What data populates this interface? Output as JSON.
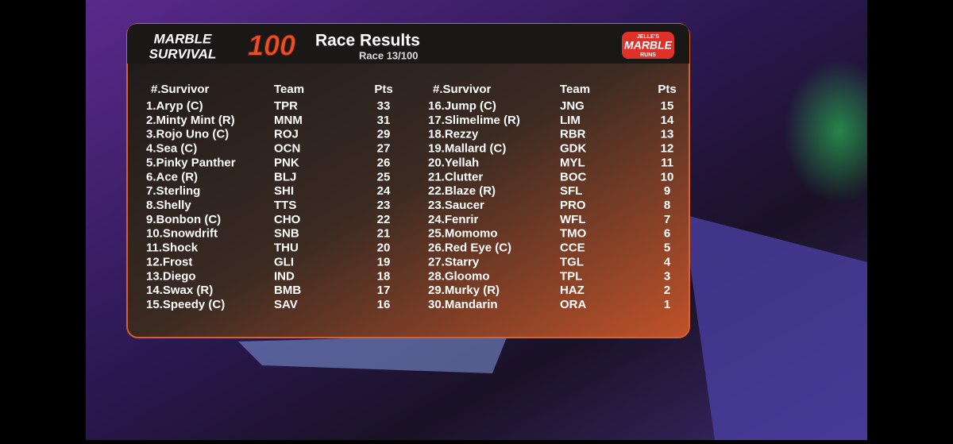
{
  "header": {
    "logo_top": "MARBLE",
    "logo_bottom": "SURVIVAL",
    "logo_number": "100",
    "title": "Race Results",
    "subtitle": "Race 13/100",
    "brand_top": "JELLE'S",
    "brand_main": "MARBLE",
    "brand_bottom": "RUNS"
  },
  "tables": [
    {
      "columns": [
        "#.Survivor",
        "Team",
        "Pts"
      ],
      "rows": [
        [
          "1.Aryp (C)",
          "TPR",
          33
        ],
        [
          "2.Minty Mint (R)",
          "MNM",
          31
        ],
        [
          "3.Rojo Uno (C)",
          "ROJ",
          29
        ],
        [
          "4.Sea (C)",
          "OCN",
          27
        ],
        [
          "5.Pinky Panther",
          "PNK",
          26
        ],
        [
          "6.Ace (R)",
          "BLJ",
          25
        ],
        [
          "7.Sterling",
          "SHI",
          24
        ],
        [
          "8.Shelly",
          "TTS",
          23
        ],
        [
          "9.Bonbon (C)",
          "CHO",
          22
        ],
        [
          "10.Snowdrift",
          "SNB",
          21
        ],
        [
          "11.Shock",
          "THU",
          20
        ],
        [
          "12.Frost",
          "GLI",
          19
        ],
        [
          "13.Diego",
          "IND",
          18
        ],
        [
          "14.Swax (R)",
          "BMB",
          17
        ],
        [
          "15.Speedy (C)",
          "SAV",
          16
        ]
      ]
    },
    {
      "columns": [
        "#.Survivor",
        "Team",
        "Pts"
      ],
      "rows": [
        [
          "16.Jump (C)",
          "JNG",
          15
        ],
        [
          "17.Slimelime (R)",
          "LIM",
          14
        ],
        [
          "18.Rezzy",
          "RBR",
          13
        ],
        [
          "19.Mallard (C)",
          "GDK",
          12
        ],
        [
          "20.Yellah",
          "MYL",
          11
        ],
        [
          "21.Clutter",
          "BOC",
          10
        ],
        [
          "22.Blaze (R)",
          "SFL",
          9
        ],
        [
          "23.Saucer",
          "PRO",
          8
        ],
        [
          "24.Fenrir",
          "WFL",
          7
        ],
        [
          "25.Momomo",
          "TMO",
          6
        ],
        [
          "26.Red Eye (C)",
          "CCE",
          5
        ],
        [
          "27.Starry",
          "TGL",
          4
        ],
        [
          "28.Gloomo",
          "TPL",
          3
        ],
        [
          "29.Murky (R)",
          "HAZ",
          2
        ],
        [
          "30.Mandarin",
          "ORA",
          1
        ]
      ]
    }
  ]
}
